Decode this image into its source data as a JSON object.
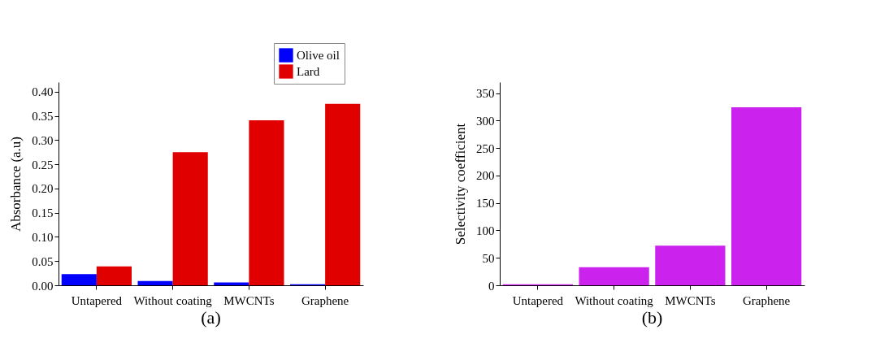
{
  "chart_data": [
    {
      "type": "bar",
      "categories": [
        "Untapered",
        "Without coating",
        "MWCNTs",
        "Graphene"
      ],
      "ylabel": "Absorbance (a.u)",
      "ylim": [
        0,
        0.42
      ],
      "yticks": [
        {
          "value": 0,
          "label": "0.00"
        },
        {
          "value": 0.05,
          "label": "0.05"
        },
        {
          "value": 0.1,
          "label": "0.10"
        },
        {
          "value": 0.15,
          "label": "0.15"
        },
        {
          "value": 0.2,
          "label": "0.20"
        },
        {
          "value": 0.25,
          "label": "0.25"
        },
        {
          "value": 0.3,
          "label": "0.30"
        },
        {
          "value": 0.35,
          "label": "0.35"
        },
        {
          "value": 0.4,
          "label": "0.40"
        }
      ],
      "legend": "top right",
      "annotations": [
        "(a)"
      ],
      "series": [
        {
          "name": "Olive oil",
          "color": "#0000ff",
          "values": [
            0.023,
            0.009,
            0.006,
            0.002
          ]
        },
        {
          "name": "Lard",
          "color": "#e00000",
          "values": [
            0.039,
            0.275,
            0.341,
            0.375
          ]
        }
      ]
    },
    {
      "type": "bar",
      "categories": [
        "Untapered",
        "Without coating",
        "MWCNTs",
        "Graphene"
      ],
      "ylabel": "Selectivity coefficient",
      "ylim": [
        0,
        370
      ],
      "yticks": [
        0,
        50,
        100,
        150,
        200,
        250,
        300,
        350
      ],
      "annotations": [
        "(b)"
      ],
      "legend": false,
      "series": [
        {
          "color": "#cc22ee",
          "values": [
            2,
            33,
            72,
            324
          ]
        }
      ]
    }
  ]
}
